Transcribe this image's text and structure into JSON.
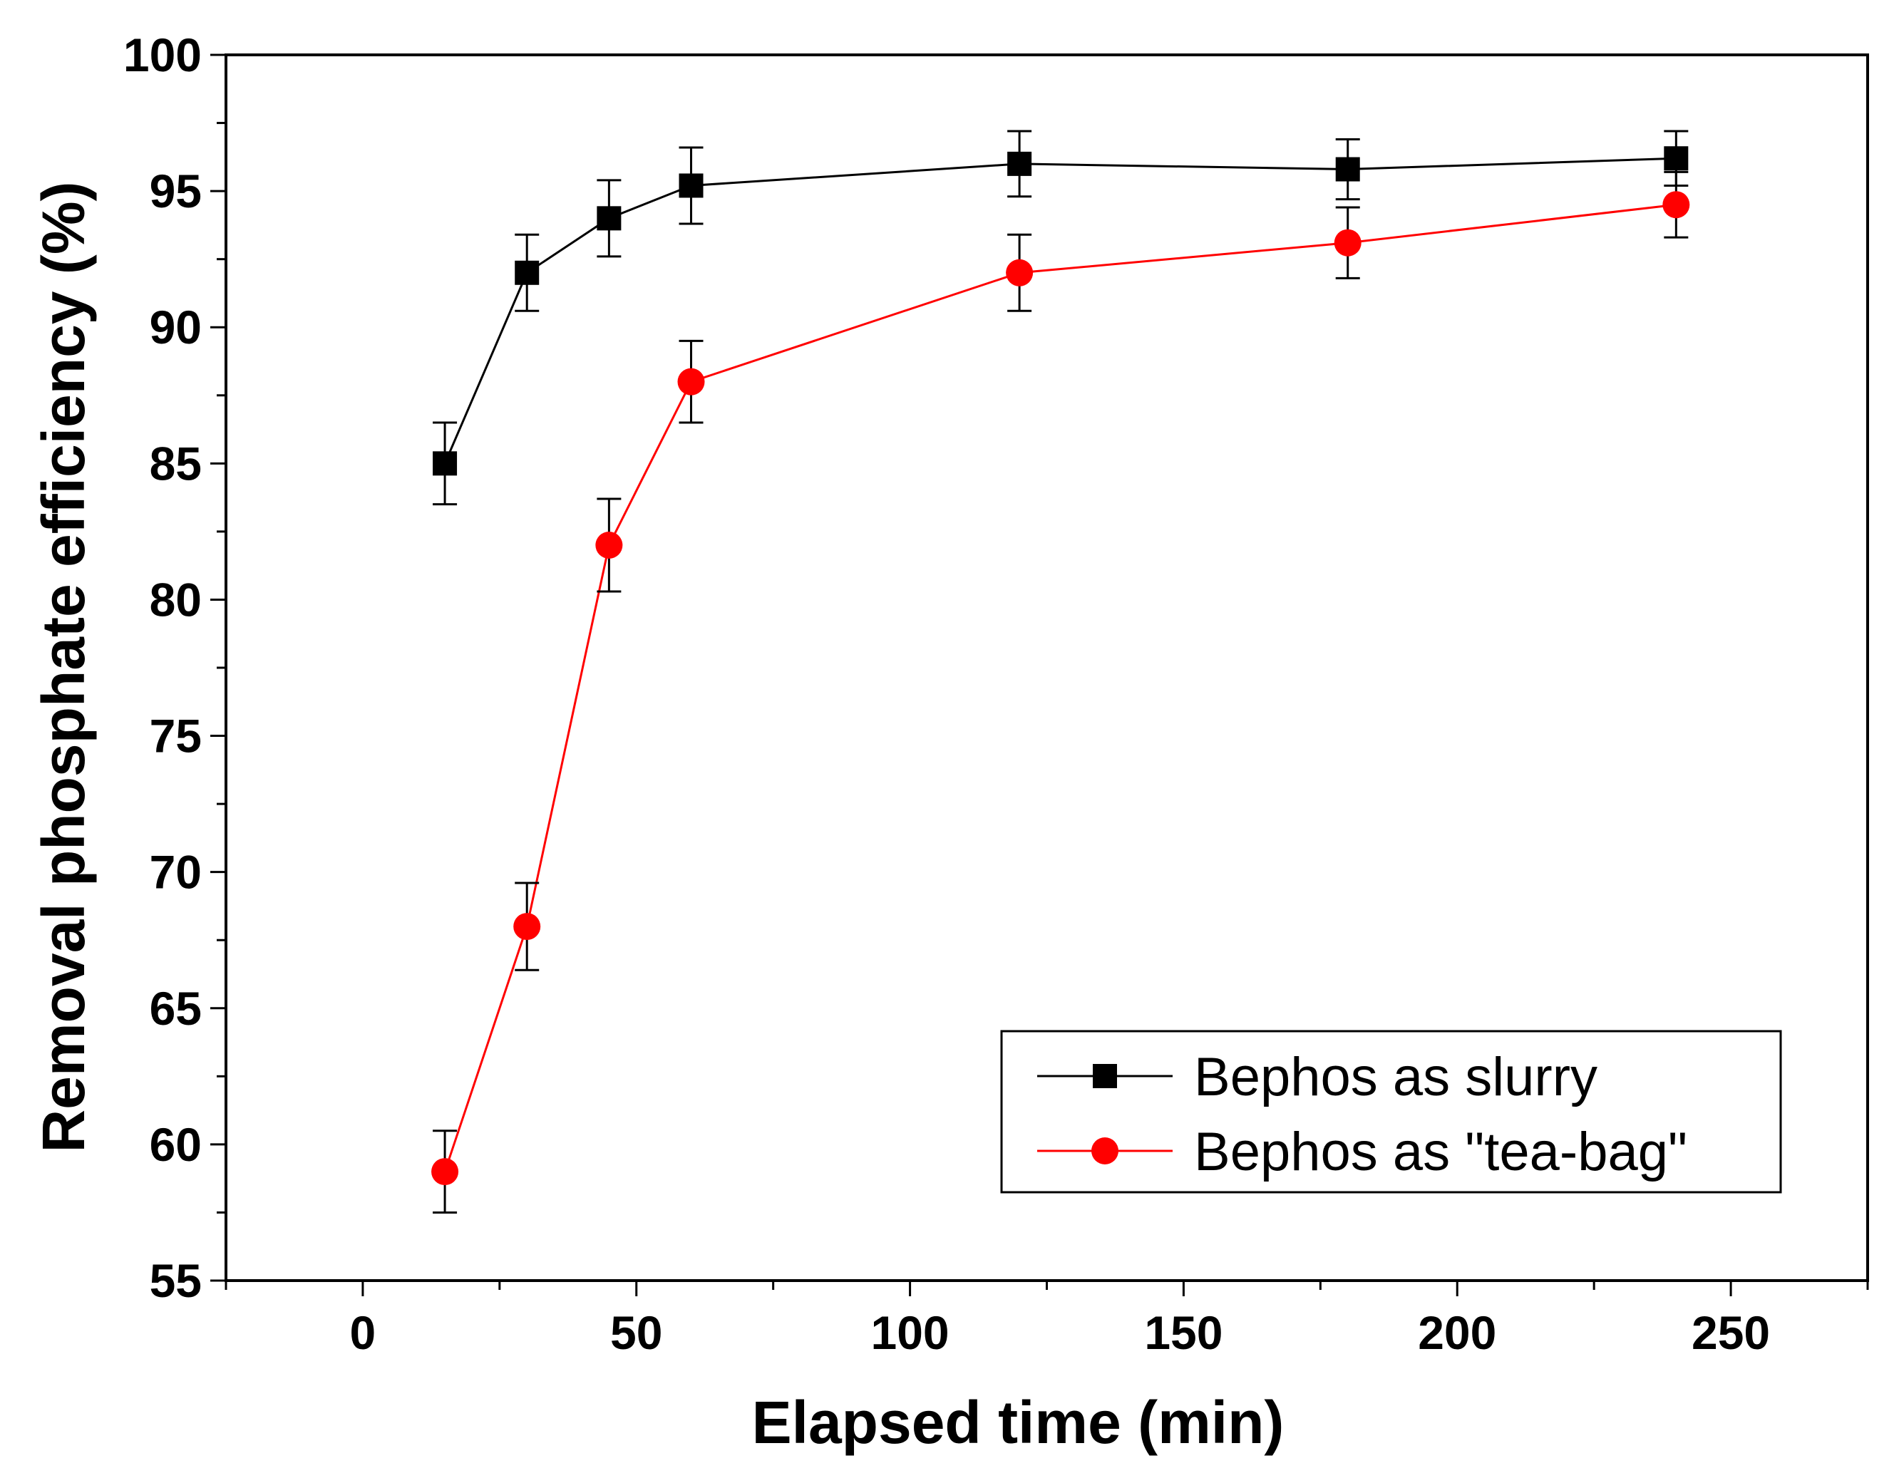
{
  "chart_data": {
    "type": "line",
    "title": "",
    "xlabel": "Elapsed time (min)",
    "ylabel": "Removal phosphate efficiency (%)",
    "xlim": [
      -25,
      275
    ],
    "ylim": [
      55,
      100
    ],
    "x_ticks": [
      0,
      50,
      100,
      150,
      200,
      250
    ],
    "x_tick_labels": [
      "0",
      "50",
      "100",
      "150",
      "200",
      "250"
    ],
    "y_ticks": [
      55,
      60,
      65,
      70,
      75,
      80,
      85,
      90,
      95,
      100
    ],
    "y_tick_labels": [
      "55",
      "60",
      "65",
      "70",
      "75",
      "80",
      "85",
      "90",
      "95",
      "100"
    ],
    "grid": false,
    "legend_position": "bottom-right",
    "x": [
      15,
      30,
      45,
      60,
      120,
      180,
      240
    ],
    "series": [
      {
        "name": "Bephos as slurry",
        "color": "#000000",
        "marker": "square",
        "values": [
          85,
          92,
          94,
          95.2,
          96,
          95.8,
          96.2
        ],
        "errors": [
          1.5,
          1.4,
          1.4,
          1.4,
          1.2,
          1.1,
          1.0
        ]
      },
      {
        "name": "Bephos as \"tea-bag\"",
        "color": "#ff0000",
        "marker": "circle",
        "values": [
          59,
          68,
          82,
          88,
          92,
          93.1,
          94.5
        ],
        "errors": [
          1.5,
          1.6,
          1.7,
          1.5,
          1.4,
          1.3,
          1.2
        ]
      }
    ]
  }
}
